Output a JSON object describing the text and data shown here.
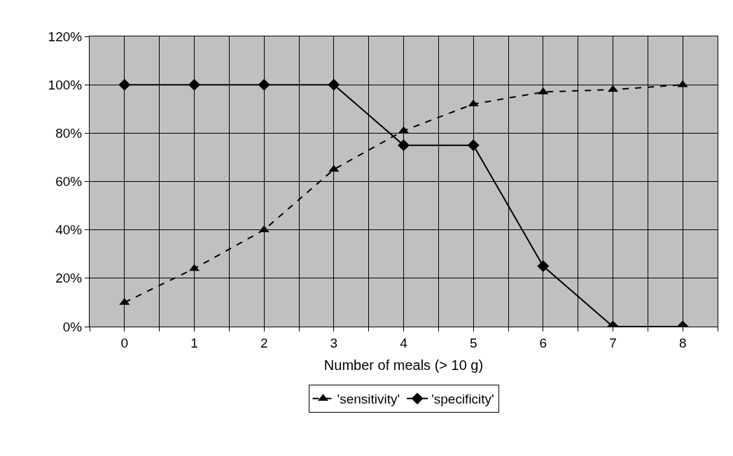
{
  "chart_data": {
    "type": "line",
    "xlabel": "Number of meals (> 10 g)",
    "x": [
      0,
      1,
      2,
      3,
      4,
      5,
      6,
      7,
      8
    ],
    "xlim": [
      -0.5,
      8.5
    ],
    "xticks": [
      {
        "value": -0.5,
        "label": null
      },
      0,
      {
        "value": 0.5,
        "label": null
      },
      1,
      {
        "value": 1.5,
        "label": null
      },
      2,
      {
        "value": 2.5,
        "label": null
      },
      3,
      {
        "value": 3.5,
        "label": null
      },
      4,
      {
        "value": 4.5,
        "label": null
      },
      5,
      {
        "value": 5.5,
        "label": null
      },
      6,
      {
        "value": 6.5,
        "label": null
      },
      7,
      {
        "value": 7.5,
        "label": null
      },
      8,
      {
        "value": 8.5,
        "label": null
      }
    ],
    "ylim": [
      0,
      120
    ],
    "yticks": [
      {
        "value": 0,
        "label": "0%"
      },
      {
        "value": 20,
        "label": "20%"
      },
      {
        "value": 40,
        "label": "40%"
      },
      {
        "value": 60,
        "label": "60%"
      },
      {
        "value": 80,
        "label": "80%"
      },
      {
        "value": 100,
        "label": "100%"
      },
      {
        "value": 120,
        "label": "120%"
      }
    ],
    "series": [
      {
        "name": "'sensitivity'",
        "color": "#000000",
        "marker": "triangle",
        "line_style": "dashed",
        "values": [
          10,
          24,
          40,
          65,
          81,
          92,
          97,
          98,
          100
        ]
      },
      {
        "name": "'specificity'",
        "color": "#000000",
        "marker": "diamond",
        "line_style": "solid",
        "values": [
          100,
          100,
          100,
          100,
          75,
          75,
          25,
          0,
          0
        ]
      }
    ],
    "grid": true,
    "legend": "bottom"
  }
}
